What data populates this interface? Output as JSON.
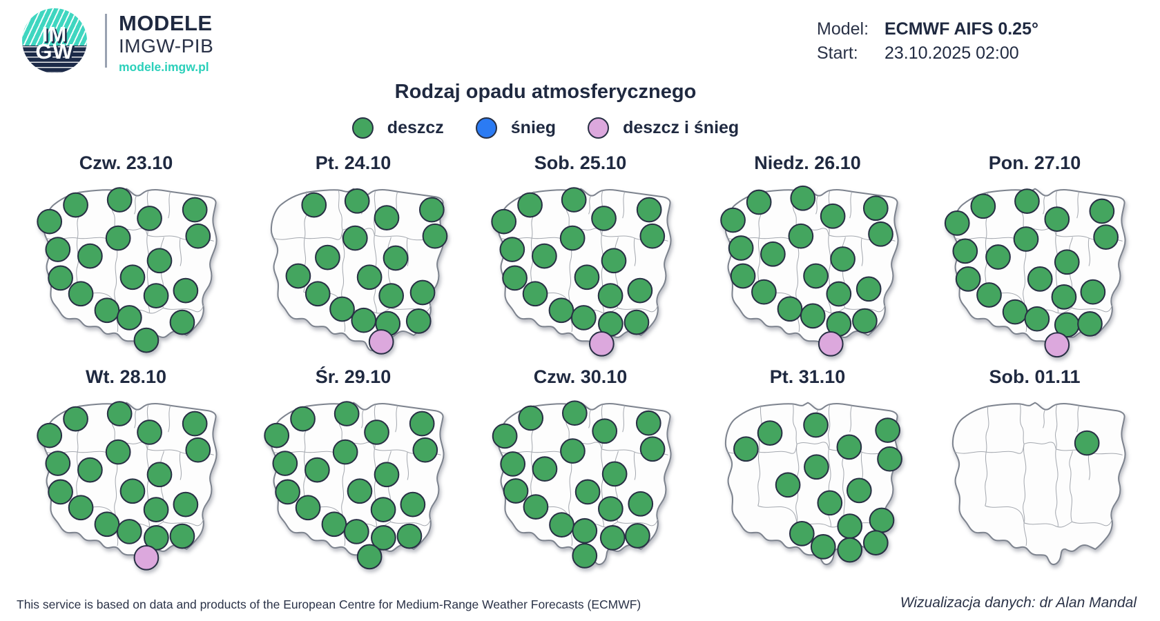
{
  "header": {
    "logo": {
      "line1": "IM",
      "line2": "GW",
      "brand1": "MODELE",
      "brand2": "IMGW-PIB",
      "url": "modele.imgw.pl"
    },
    "model_label": "Model:",
    "model_value": "ECMWF AIFS 0.25°",
    "start_label": "Start:",
    "start_value": "23.10.2025 02:00"
  },
  "title": "Rodzaj opadu atmosferycznego",
  "legend": {
    "items": [
      {
        "label": "deszcz",
        "color": "#44A55F",
        "type": "rain"
      },
      {
        "label": "śnieg",
        "color": "#2B7BF3",
        "type": "snow"
      },
      {
        "label": "deszcz i śnieg",
        "color": "#DCA8DD",
        "type": "mixed"
      }
    ]
  },
  "colors": {
    "rain": "#44A55F",
    "snow": "#2B7BF3",
    "mixed": "#DCA8DD",
    "dot_stroke": "#283044",
    "text": "#1F2940",
    "teal": "#2BD0BA"
  },
  "days": [
    {
      "label": "Czw. 23.10",
      "rain": [
        [
          24.6,
          14.9
        ],
        [
          46.6,
          12.3
        ],
        [
          61.6,
          21.6
        ],
        [
          84.3,
          17.3
        ],
        [
          11.5,
          23.2
        ],
        [
          45.9,
          31.5
        ],
        [
          85.9,
          30.5
        ],
        [
          15.7,
          37.2
        ],
        [
          31.8,
          40.5
        ],
        [
          66.6,
          42.8
        ],
        [
          17,
          51.5
        ],
        [
          53.1,
          51.1
        ],
        [
          27.2,
          59.4
        ],
        [
          64.9,
          60.4
        ],
        [
          79.7,
          57.8
        ],
        [
          40.3,
          67.7
        ],
        [
          51.5,
          71.4
        ],
        [
          78,
          73.7
        ],
        [
          60,
          82.7
        ]
      ],
      "mixed": []
    },
    {
      "label": "Pt. 24.10",
      "rain": [
        [
          30.2,
          14.9
        ],
        [
          51.8,
          12.9
        ],
        [
          66.6,
          21.3
        ],
        [
          89.2,
          17.3
        ],
        [
          50.8,
          31.5
        ],
        [
          90.8,
          30.5
        ],
        [
          37,
          41.2
        ],
        [
          71.1,
          41.5
        ],
        [
          22.3,
          50.5
        ],
        [
          58,
          51.1
        ],
        [
          32.1,
          59.4
        ],
        [
          68.9,
          60.4
        ],
        [
          84.6,
          58.8
        ],
        [
          44.3,
          67.1
        ],
        [
          55.1,
          72.7
        ],
        [
          67.2,
          74.4
        ],
        [
          82.6,
          73.1
        ]
      ],
      "mixed": [
        [
          63.9,
          83.5
        ]
      ]
    },
    {
      "label": "Sob. 25.10",
      "rain": [
        [
          24.6,
          14.9
        ],
        [
          46.6,
          12.3
        ],
        [
          61.6,
          21.6
        ],
        [
          84.3,
          17.3
        ],
        [
          11.5,
          23.2
        ],
        [
          45.9,
          31.5
        ],
        [
          85.9,
          30.5
        ],
        [
          15.7,
          37.2
        ],
        [
          31.8,
          40.5
        ],
        [
          66.6,
          42.8
        ],
        [
          17,
          51.5
        ],
        [
          53.1,
          51.1
        ],
        [
          27.2,
          59.4
        ],
        [
          64.9,
          60.4
        ],
        [
          79.7,
          57.8
        ],
        [
          40.3,
          67.7
        ],
        [
          51.5,
          71.4
        ],
        [
          65,
          74.5
        ],
        [
          78,
          73.7
        ]
      ],
      "mixed": [
        [
          60.5,
          84.5
        ]
      ]
    },
    {
      "label": "Niedz. 26.10",
      "rain": [
        [
          25.5,
          13.5
        ],
        [
          47.5,
          11.5
        ],
        [
          62.5,
          20.5
        ],
        [
          84,
          16.5
        ],
        [
          12.5,
          22.5
        ],
        [
          46.5,
          30.5
        ],
        [
          86.5,
          29.5
        ],
        [
          16.5,
          36.5
        ],
        [
          32.5,
          39.5
        ],
        [
          67.5,
          42
        ],
        [
          17.5,
          50.5
        ],
        [
          54,
          50.5
        ],
        [
          28,
          58.5
        ],
        [
          65.5,
          59.5
        ],
        [
          80.5,
          57
        ],
        [
          41,
          67
        ],
        [
          52.5,
          70.5
        ],
        [
          78.5,
          73
        ],
        [
          65.5,
          74.5
        ]
      ],
      "mixed": [
        [
          61.5,
          84.5
        ]
      ]
    },
    {
      "label": "Pon. 27.10",
      "rain": [
        [
          24,
          15.5
        ],
        [
          46,
          13
        ],
        [
          61,
          22
        ],
        [
          83.5,
          18
        ],
        [
          11,
          24
        ],
        [
          45.5,
          32
        ],
        [
          85.5,
          31
        ],
        [
          15,
          38
        ],
        [
          31.5,
          41
        ],
        [
          66,
          43.5
        ],
        [
          16.5,
          52
        ],
        [
          52.5,
          52
        ],
        [
          27,
          60
        ],
        [
          64.5,
          61
        ],
        [
          79,
          58.5
        ],
        [
          40,
          68.5
        ],
        [
          51,
          72
        ],
        [
          66,
          75
        ],
        [
          77.5,
          74.5
        ]
      ],
      "mixed": [
        [
          61,
          85
        ]
      ]
    },
    {
      "label": "Wt. 28.10",
      "rain": [
        [
          24.6,
          14.9
        ],
        [
          46.6,
          12.3
        ],
        [
          61.6,
          21.6
        ],
        [
          84.3,
          17.3
        ],
        [
          11.5,
          23.2
        ],
        [
          45.9,
          31.5
        ],
        [
          85.9,
          30.5
        ],
        [
          15.7,
          37.2
        ],
        [
          31.8,
          40.5
        ],
        [
          66.6,
          42.8
        ],
        [
          17,
          51.5
        ],
        [
          53.1,
          51.1
        ],
        [
          27.2,
          59.4
        ],
        [
          64.9,
          60.4
        ],
        [
          79.7,
          57.8
        ],
        [
          40.3,
          67.7
        ],
        [
          51.5,
          71.4
        ],
        [
          65,
          74.5
        ],
        [
          78,
          73.7
        ]
      ],
      "mixed": [
        [
          60,
          84.5
        ]
      ]
    },
    {
      "label": "Śr. 29.10",
      "rain": [
        [
          24.6,
          14.9
        ],
        [
          46.6,
          12.3
        ],
        [
          61.6,
          21.6
        ],
        [
          84.3,
          17.3
        ],
        [
          11.5,
          23.2
        ],
        [
          45.9,
          31.5
        ],
        [
          85.9,
          30.5
        ],
        [
          15.7,
          37.2
        ],
        [
          31.8,
          40.5
        ],
        [
          66.6,
          42.8
        ],
        [
          17,
          51.5
        ],
        [
          53.1,
          51.1
        ],
        [
          27.2,
          59.4
        ],
        [
          64.9,
          60.4
        ],
        [
          79.7,
          57.8
        ],
        [
          40.3,
          67.7
        ],
        [
          51.5,
          71.4
        ],
        [
          65,
          74.5
        ],
        [
          78,
          73.7
        ],
        [
          58,
          84
        ]
      ],
      "mixed": []
    },
    {
      "label": "Czw. 30.10",
      "rain": [
        [
          25,
          14.5
        ],
        [
          47,
          12
        ],
        [
          62,
          21
        ],
        [
          84,
          17
        ],
        [
          12,
          23.5
        ],
        [
          46,
          31
        ],
        [
          86,
          30
        ],
        [
          16,
          37.5
        ],
        [
          32,
          40
        ],
        [
          67,
          42.5
        ],
        [
          17.5,
          51
        ],
        [
          53.5,
          51.5
        ],
        [
          27.5,
          59
        ],
        [
          65,
          60
        ],
        [
          80,
          57.5
        ],
        [
          40.5,
          68
        ],
        [
          52,
          71
        ],
        [
          66,
          74.5
        ],
        [
          78.5,
          73.5
        ],
        [
          52,
          83.5
        ]
      ],
      "mixed": []
    },
    {
      "label": "Pt. 31.10",
      "rain": [
        [
          19,
          30
        ],
        [
          31,
          22
        ],
        [
          54,
          18
        ],
        [
          70.7,
          29
        ],
        [
          90,
          20.6
        ],
        [
          91,
          35
        ],
        [
          54.3,
          39
        ],
        [
          40,
          48
        ],
        [
          75.7,
          50.8
        ],
        [
          61,
          57
        ],
        [
          87,
          65.7
        ],
        [
          71,
          68.7
        ],
        [
          47,
          72.4
        ],
        [
          57.7,
          79
        ],
        [
          71,
          80.6
        ],
        [
          84,
          77
        ]
      ],
      "mixed": []
    },
    {
      "label": "Sob. 01.11",
      "rain": [
        [
          76,
          27
        ]
      ],
      "mixed": []
    }
  ],
  "footer": {
    "left": "This service is based on data and products of the European Centre for Medium-Range Weather Forecasts (ECMWF)",
    "right": "Wizualizacja danych: dr Alan Mandal"
  }
}
